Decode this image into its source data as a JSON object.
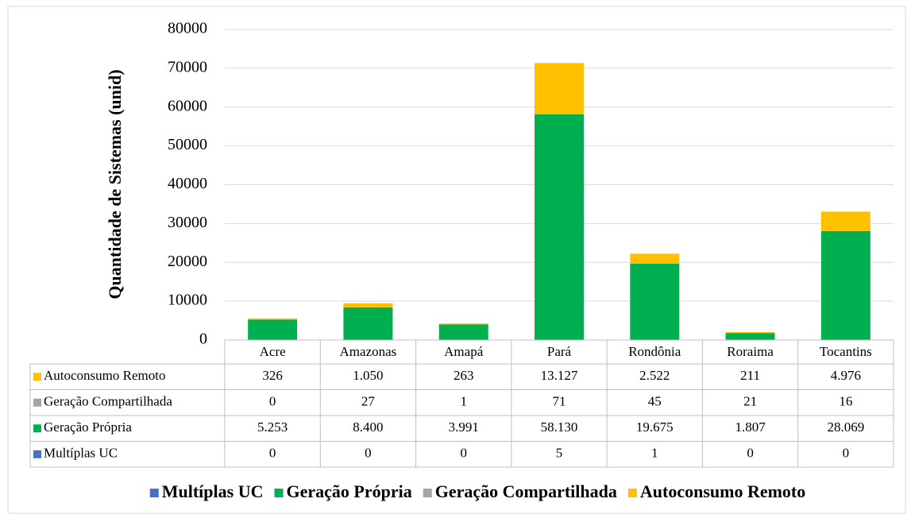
{
  "chart_data": {
    "type": "bar",
    "stacked": true,
    "y_label": "Quantidade de Sistemas (unid)",
    "categories": [
      "Acre",
      "Amazonas",
      "Amapá",
      "Pará",
      "Rondônia",
      "Roraima",
      "Tocantins"
    ],
    "series": [
      {
        "name": "Multíplas UC",
        "color": "#4472c4",
        "values": [
          0,
          0,
          0,
          5,
          1,
          0,
          0
        ],
        "value_labels": [
          "0",
          "0",
          "0",
          "5",
          "1",
          "0",
          "0"
        ]
      },
      {
        "name": "Geração Própria",
        "color": "#00b050",
        "values": [
          5253,
          8400,
          3991,
          58130,
          19675,
          1807,
          28069
        ],
        "value_labels": [
          "5.253",
          "8.400",
          "3.991",
          "58.130",
          "19.675",
          "1.807",
          "28.069"
        ]
      },
      {
        "name": "Geração Compartilhada",
        "color": "#a5a5a5",
        "values": [
          0,
          27,
          1,
          71,
          45,
          21,
          16
        ],
        "value_labels": [
          "0",
          "27",
          "1",
          "71",
          "45",
          "21",
          "16"
        ]
      },
      {
        "name": "Autoconsumo Remoto",
        "color": "#ffc000",
        "values": [
          326,
          1050,
          263,
          13127,
          2522,
          211,
          4976
        ],
        "value_labels": [
          "326",
          "1.050",
          "263",
          "13.127",
          "2.522",
          "211",
          "4.976"
        ]
      }
    ],
    "ylim": [
      0,
      80000
    ],
    "yticks": [
      0,
      10000,
      20000,
      30000,
      40000,
      50000,
      60000,
      70000,
      80000
    ],
    "grid": true
  }
}
